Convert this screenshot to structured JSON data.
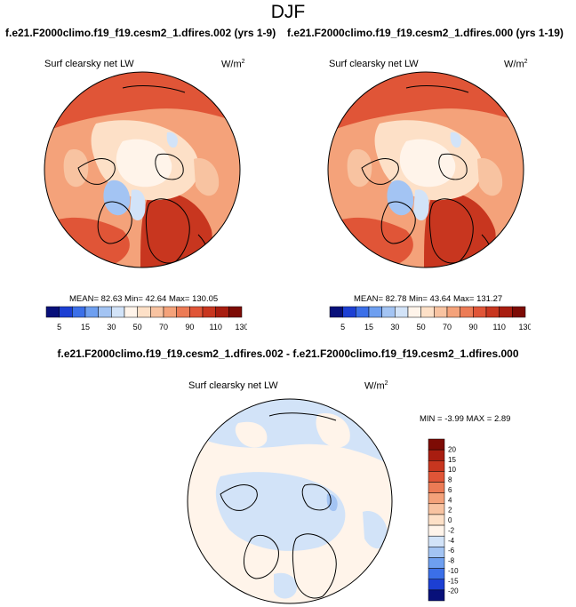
{
  "figure": {
    "season": "DJF",
    "case_titles": [
      "f.e21.F2000climo.f19_f19.cesm2_1.dfires.002 (yrs 1-9)",
      "f.e21.F2000climo.f19_f19.cesm2_1.dfires.000 (yrs 1-19)"
    ],
    "diff_title": "f.e21.F2000climo.f19_f19.cesm2_1.dfires.002 - f.e21.F2000climo.f19_f19.cesm2_1.dfires.000"
  },
  "panels": [
    {
      "variable": "Surf clearsky net LW",
      "units_base": "W/m",
      "units_exp": "2",
      "stats": "MEAN=  82.63   Min=  42.64   Max= 130.05"
    },
    {
      "variable": "Surf clearsky net LW",
      "units_base": "W/m",
      "units_exp": "2",
      "stats": "MEAN=  82.78   Min=  43.64   Max= 131.27"
    }
  ],
  "diff_panel": {
    "variable": "Surf clearsky net LW",
    "units_base": "W/m",
    "units_exp": "2",
    "stats": "MIN =  -3.99 MAX =   2.89"
  },
  "abs_colorbar": {
    "colors": [
      "#08107a",
      "#1c3fd3",
      "#3b6fe8",
      "#6e9ff0",
      "#a3c4f3",
      "#d2e3f8",
      "#fff4ea",
      "#fde0c7",
      "#f8c3a1",
      "#f4a27a",
      "#ec7b55",
      "#e05537",
      "#c8361f",
      "#a81d10",
      "#7d0b05"
    ],
    "tick_labels": [
      "5",
      "15",
      "30",
      "50",
      "70",
      "90",
      "110",
      "130"
    ]
  },
  "diff_colorbar": {
    "colors": [
      "#08107a",
      "#1c3fd3",
      "#3b6fe8",
      "#6e9ff0",
      "#a3c4f3",
      "#d2e3f8",
      "#fff4ea",
      "#fde0c7",
      "#f8c3a1",
      "#f4a27a",
      "#ec7b55",
      "#e05537",
      "#c8361f",
      "#a81d10",
      "#7d0b05"
    ],
    "tick_labels": [
      "20",
      "15",
      "10",
      "8",
      "6",
      "4",
      "2",
      "0",
      "-2",
      "-4",
      "-6",
      "-8",
      "-10",
      "-15",
      "-20"
    ]
  },
  "icons": {
    "map": "polar-stereographic-map",
    "colorbar": "colorbar"
  }
}
